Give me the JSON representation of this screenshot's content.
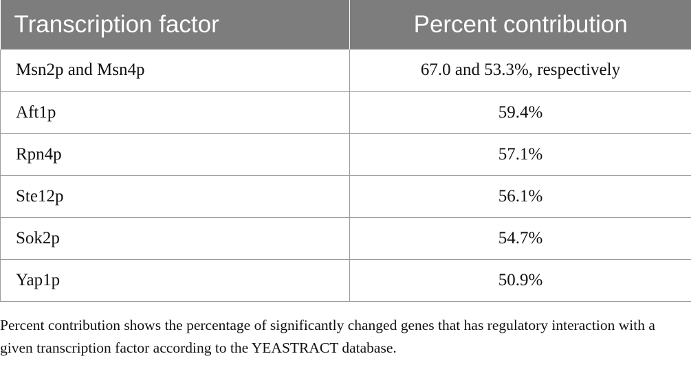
{
  "table": {
    "headers": [
      "Transcription factor",
      "Percent contribution"
    ],
    "rows": [
      {
        "factor": "Msn2p and Msn4p",
        "contribution": "67.0 and 53.3%, respectively"
      },
      {
        "factor": "Aft1p",
        "contribution": "59.4%"
      },
      {
        "factor": "Rpn4p",
        "contribution": "57.1%"
      },
      {
        "factor": "Ste12p",
        "contribution": "56.1%"
      },
      {
        "factor": "Sok2p",
        "contribution": "54.7%"
      },
      {
        "factor": "Yap1p",
        "contribution": "50.9%"
      }
    ],
    "header_bg": "#7d7d7d",
    "header_text_color": "#ffffff",
    "border_color": "#9a9a9a"
  },
  "footnote": "Percent contribution shows the percentage of significantly changed genes that has regulatory interaction with a given transcription factor according to the YEASTRACT database."
}
